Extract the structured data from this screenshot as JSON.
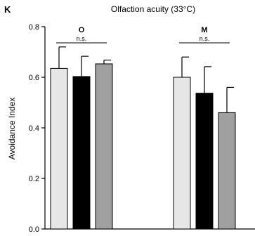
{
  "panel_label": "K",
  "chart_data": {
    "type": "bar",
    "title": "Olfaction acuity (33°C)",
    "xlabel": "",
    "ylabel": "Avoidance Index",
    "ylim": [
      0,
      0.8
    ],
    "yticks": [
      "0.0",
      "0.2",
      "0.4",
      "0.6",
      "0.8"
    ],
    "groups": [
      {
        "label": "O",
        "significance": "n.s.",
        "bars": [
          {
            "value": 0.635,
            "error": 0.085,
            "color": "#e6e6e6"
          },
          {
            "value": 0.603,
            "error": 0.08,
            "color": "#000000"
          },
          {
            "value": 0.653,
            "error": 0.015,
            "color": "#a0a0a0"
          }
        ]
      },
      {
        "label": "M",
        "significance": "n.s.",
        "bars": [
          {
            "value": 0.6,
            "error": 0.08,
            "color": "#e6e6e6"
          },
          {
            "value": 0.537,
            "error": 0.105,
            "color": "#000000"
          },
          {
            "value": 0.46,
            "error": 0.1,
            "color": "#a0a0a0"
          }
        ]
      }
    ],
    "grid": false,
    "legend": "none"
  }
}
